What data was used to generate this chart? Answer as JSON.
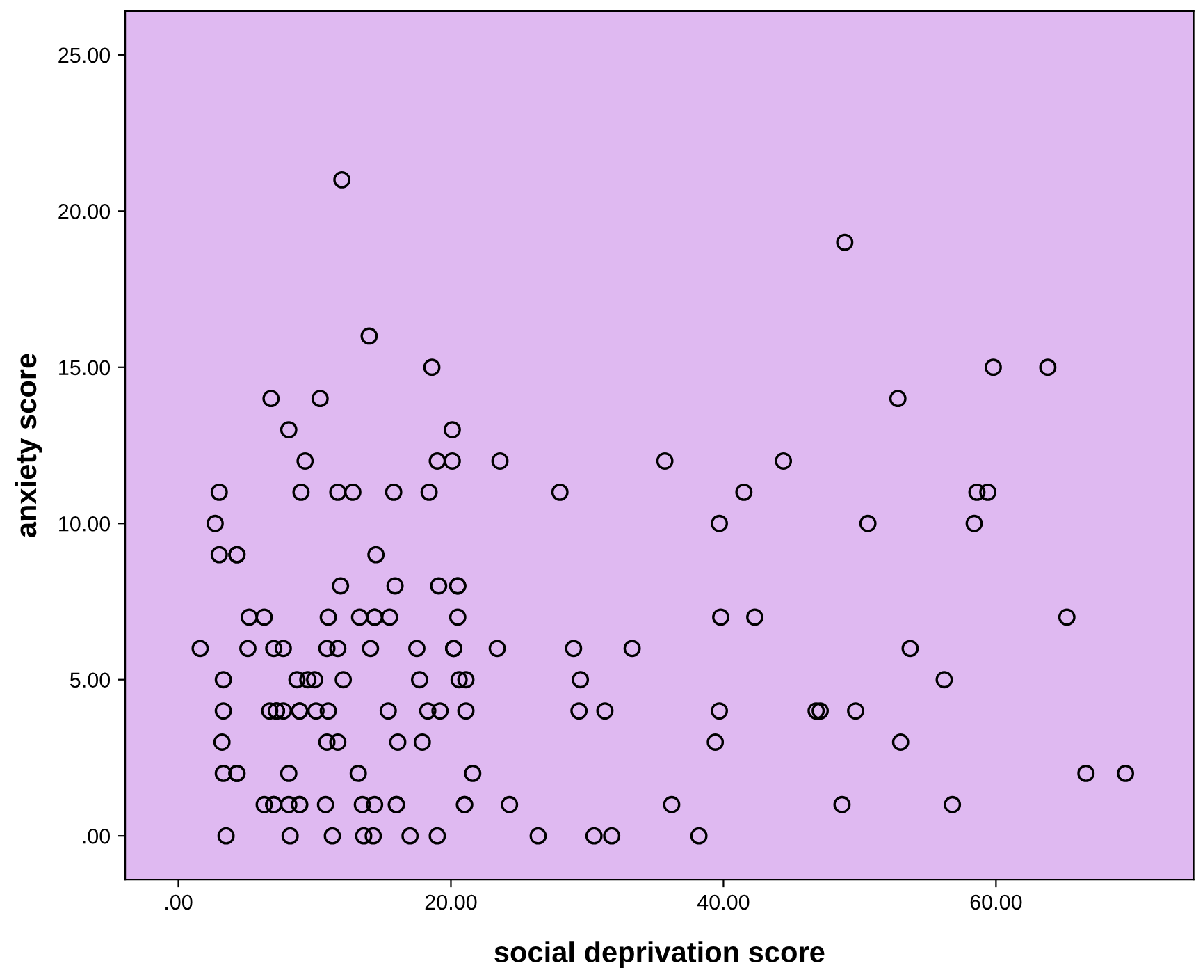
{
  "chart_data": {
    "type": "scatter",
    "xlabel": "social deprivation score",
    "ylabel": "anxiety score",
    "xlim": [
      -3.9,
      74.5
    ],
    "ylim": [
      -1.4,
      26.4
    ],
    "xticks": [
      {
        "value": 0,
        "label": ".00"
      },
      {
        "value": 20,
        "label": "20.00"
      },
      {
        "value": 40,
        "label": "40.00"
      },
      {
        "value": 60,
        "label": "60.00"
      }
    ],
    "yticks": [
      {
        "value": 0,
        "label": ".00"
      },
      {
        "value": 5,
        "label": "5.00"
      },
      {
        "value": 10,
        "label": "10.00"
      },
      {
        "value": 15,
        "label": "15.00"
      },
      {
        "value": 20,
        "label": "20.00"
      },
      {
        "value": 25,
        "label": "25.00"
      }
    ],
    "grid": false,
    "marker": "circle",
    "series": [
      {
        "color": "#000000",
        "x": [
          12.0,
          48.9,
          14.0,
          18.6,
          59.8,
          63.8,
          6.8,
          10.4,
          52.8,
          8.1,
          20.1,
          9.3,
          19.0,
          20.1,
          23.6,
          35.7,
          44.4,
          3.0,
          9.0,
          11.7,
          12.8,
          15.8,
          18.4,
          28.0,
          41.5,
          58.6,
          59.4,
          2.7,
          39.7,
          50.6,
          58.4,
          3.0,
          4.3,
          4.3,
          14.5,
          11.9,
          15.9,
          19.1,
          20.5,
          20.5,
          5.2,
          6.3,
          11.0,
          13.3,
          14.4,
          14.4,
          15.5,
          20.5,
          39.8,
          42.3,
          65.2,
          1.6,
          5.1,
          7.0,
          7.7,
          10.9,
          11.7,
          14.1,
          17.5,
          20.2,
          20.2,
          23.4,
          29.0,
          33.3,
          53.7,
          3.3,
          8.7,
          9.5,
          10.0,
          12.1,
          17.7,
          20.6,
          21.1,
          29.5,
          56.2,
          3.3,
          6.7,
          7.2,
          7.2,
          7.7,
          8.9,
          8.9,
          10.1,
          11.0,
          15.4,
          18.3,
          19.2,
          21.1,
          29.4,
          31.3,
          39.7,
          46.8,
          47.1,
          49.7,
          3.2,
          10.9,
          11.7,
          16.1,
          17.9,
          39.4,
          53.0,
          3.3,
          4.3,
          4.3,
          8.1,
          13.2,
          21.6,
          66.6,
          69.5,
          6.3,
          7.0,
          7.0,
          8.1,
          8.9,
          8.9,
          10.8,
          13.5,
          14.4,
          16.0,
          16.0,
          21.0,
          21.0,
          24.3,
          36.2,
          48.7,
          56.8,
          3.5,
          8.2,
          11.3,
          13.6,
          14.3,
          17.0,
          19.0,
          26.4,
          30.5,
          31.8,
          38.2
        ],
        "values": [
          21,
          19,
          16,
          15,
          15,
          15,
          14,
          14,
          14,
          13,
          13,
          12,
          12,
          12,
          12,
          12,
          12,
          11,
          11,
          11,
          11,
          11,
          11,
          11,
          11,
          11,
          11,
          10,
          10,
          10,
          10,
          9,
          9,
          9,
          9,
          8,
          8,
          8,
          8,
          8,
          7,
          7,
          7,
          7,
          7,
          7,
          7,
          7,
          7,
          7,
          7,
          6,
          6,
          6,
          6,
          6,
          6,
          6,
          6,
          6,
          6,
          6,
          6,
          6,
          6,
          5,
          5,
          5,
          5,
          5,
          5,
          5,
          5,
          5,
          5,
          4,
          4,
          4,
          4,
          4,
          4,
          4,
          4,
          4,
          4,
          4,
          4,
          4,
          4,
          4,
          4,
          4,
          4,
          4,
          3,
          3,
          3,
          3,
          3,
          3,
          3,
          2,
          2,
          2,
          2,
          2,
          2,
          2,
          2,
          1,
          1,
          1,
          1,
          1,
          1,
          1,
          1,
          1,
          1,
          1,
          1,
          1,
          1,
          1,
          1,
          1,
          0,
          0,
          0,
          0,
          0,
          0,
          0,
          0,
          0,
          0,
          0
        ]
      }
    ]
  }
}
